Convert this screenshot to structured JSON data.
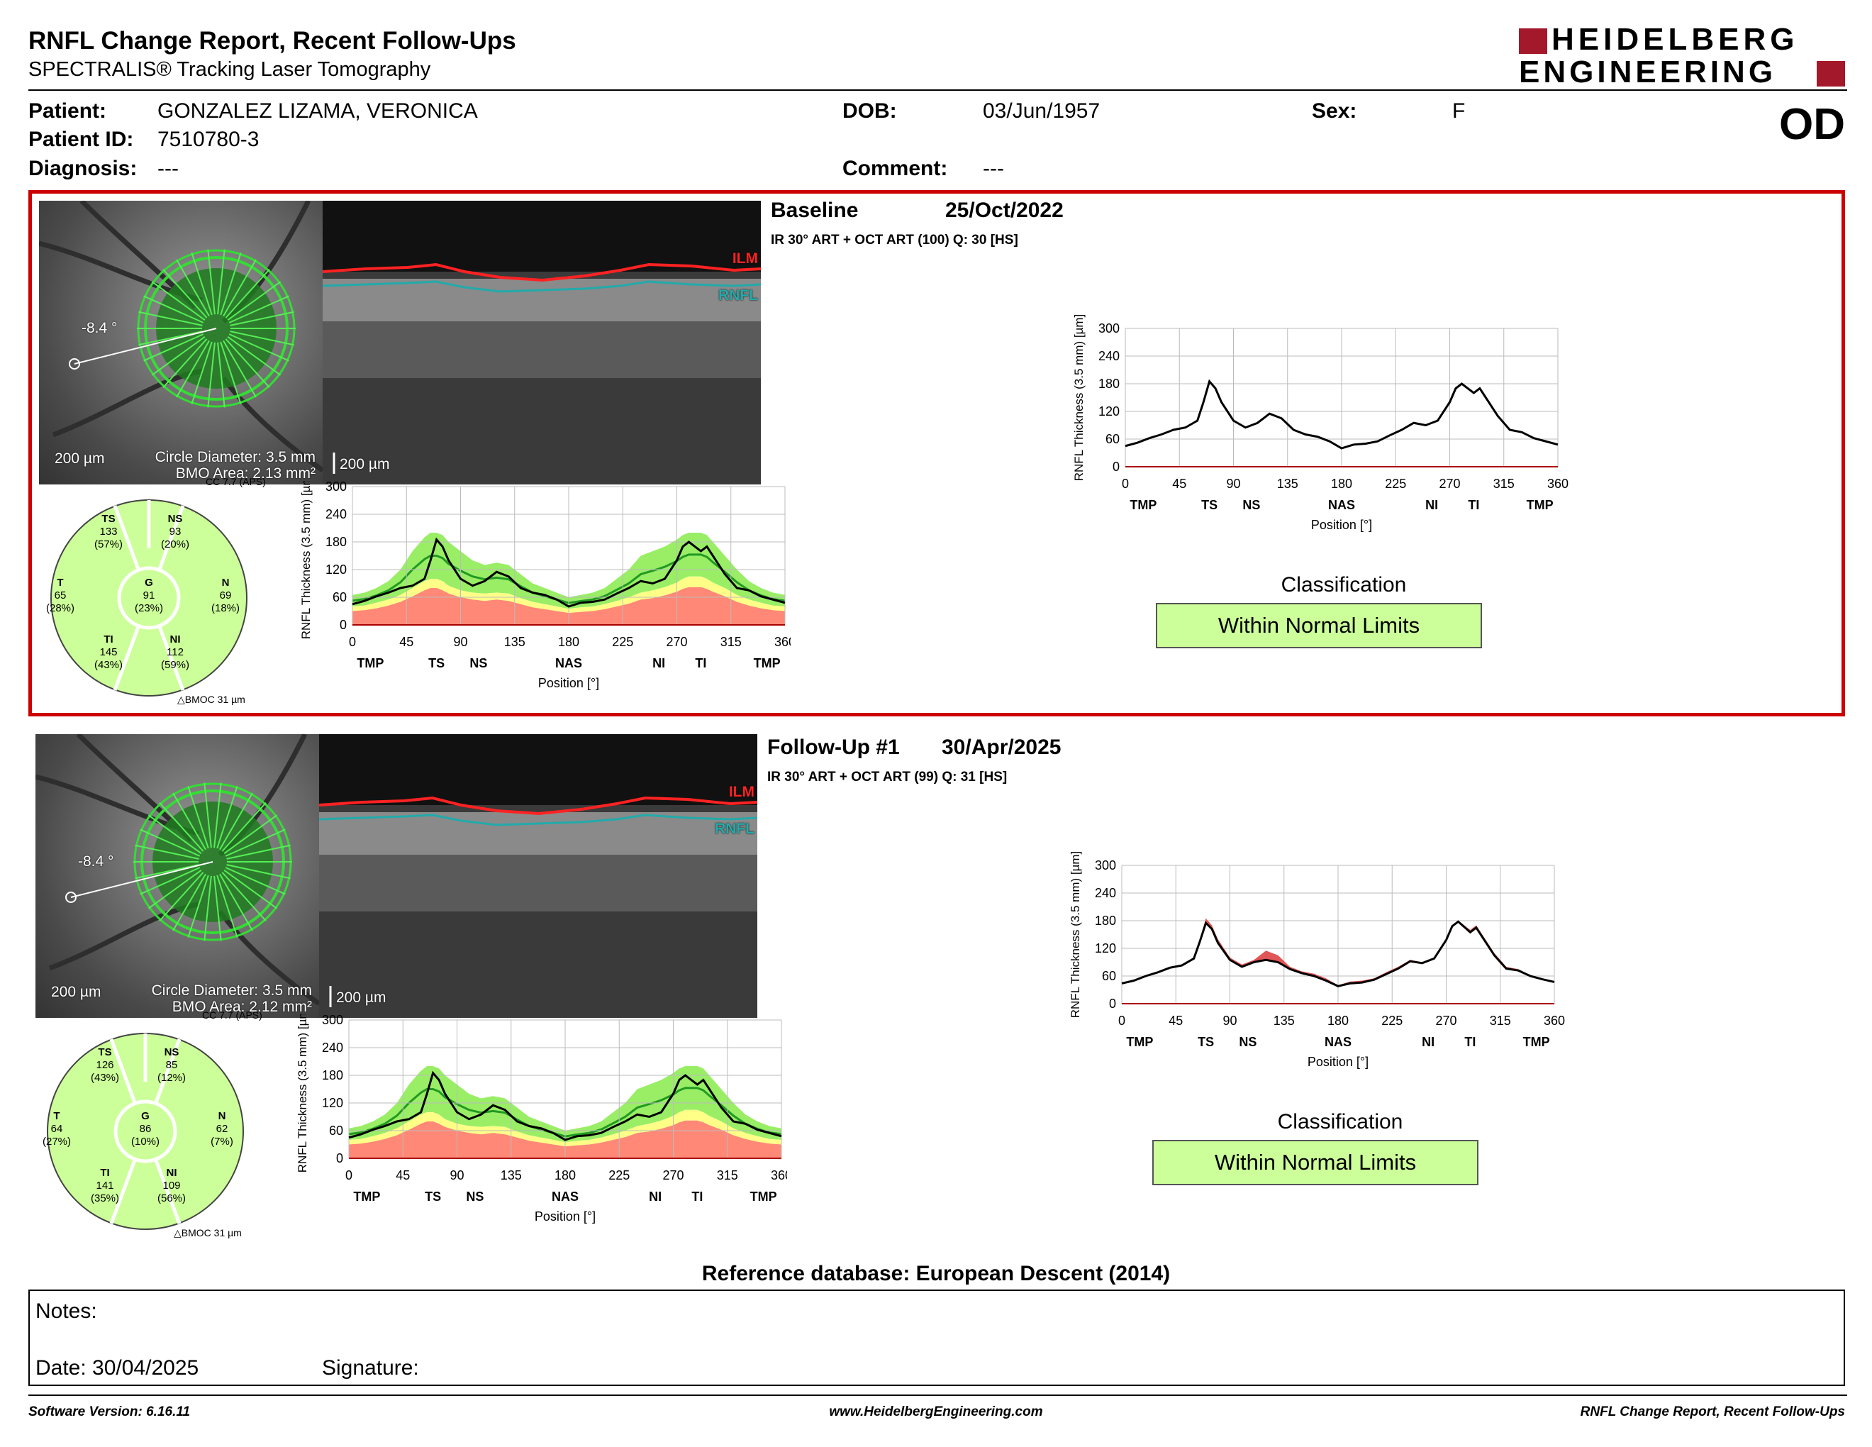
{
  "header": {
    "title": "RNFL Change Report, Recent Follow-Ups",
    "subtitle": "SPECTRALIS® Tracking Laser Tomography",
    "logo_line1": "HEIDELBERG",
    "logo_line2": "ENGINEERING",
    "eye": "OD"
  },
  "patient": {
    "patient_label": "Patient:",
    "patient_value": "GONZALEZ LIZAMA, VERONICA",
    "id_label": "Patient ID:",
    "id_value": "7510780-3",
    "diagnosis_label": "Diagnosis:",
    "diagnosis_value": "---",
    "dob_label": "DOB:",
    "dob_value": "03/Jun/1957",
    "comment_label": "Comment:",
    "comment_value": "---",
    "sex_label": "Sex:",
    "sex_value": "F"
  },
  "colors": {
    "brand_red": "#a3182b",
    "panel_border": "#cc0000",
    "classification_bg": "#ccff99",
    "normal_band": "#99ee66",
    "borderline_band": "#ffff88",
    "abnormal_band": "#ff8877"
  },
  "chart_axes": {
    "ylabel": "RNFL Thickness (3.5 mm) [µm]",
    "xlabel": "Position [°]",
    "yticks": [
      "0",
      "60",
      "120",
      "180",
      "240",
      "300"
    ],
    "xticks": [
      "0",
      "45",
      "90",
      "135",
      "180",
      "225",
      "270",
      "315",
      "360"
    ],
    "sector_labels": [
      "TMP",
      "TS",
      "NS",
      "NAS",
      "NI",
      "TI",
      "TMP"
    ]
  },
  "sessions": [
    {
      "label": "Baseline",
      "date": "25/Oct/2022",
      "scan": "IR 30° ART + OCT ART (100) Q: 30 [HS]",
      "angle": "-8.4 °",
      "scale_fundus": "200 µm",
      "scale_bscan": "200 µm",
      "circle_diameter": "Circle Diameter: 3.5 mm",
      "bmo_area": "BMO Area: 2.13 mm²",
      "cc": "CC 7.7 (APS)",
      "bmoc": "BMOC 31 µm",
      "ilm": "ILM",
      "rnfl": "RNFL",
      "classification_title": "Classification",
      "classification": "Within Normal Limits",
      "sectors": {
        "TS": {
          "name": "TS",
          "value": "133",
          "pct": "(57%)"
        },
        "NS": {
          "name": "NS",
          "value": "93",
          "pct": "(20%)"
        },
        "T": {
          "name": "T",
          "value": "65",
          "pct": "(28%)"
        },
        "G": {
          "name": "G",
          "value": "91",
          "pct": "(23%)"
        },
        "N": {
          "name": "N",
          "value": "69",
          "pct": "(18%)"
        },
        "TI": {
          "name": "TI",
          "value": "145",
          "pct": "(43%)"
        },
        "NI": {
          "name": "NI",
          "value": "112",
          "pct": "(59%)"
        }
      }
    },
    {
      "label": "Follow-Up #1",
      "date": "30/Apr/2025",
      "scan": "IR 30° ART + OCT ART (99) Q: 31 [HS]",
      "angle": "-8.4 °",
      "scale_fundus": "200 µm",
      "scale_bscan": "200 µm",
      "circle_diameter": "Circle Diameter: 3.5 mm",
      "bmo_area": "BMO Area: 2.12 mm²",
      "cc": "CC 7.7 (APS)",
      "bmoc": "BMOC 31 µm",
      "ilm": "ILM",
      "rnfl": "RNFL",
      "classification_title": "Classification",
      "classification": "Within Normal Limits",
      "sectors": {
        "TS": {
          "name": "TS",
          "value": "126",
          "pct": "(43%)"
        },
        "NS": {
          "name": "NS",
          "value": "85",
          "pct": "(12%)"
        },
        "T": {
          "name": "T",
          "value": "64",
          "pct": "(27%)"
        },
        "G": {
          "name": "G",
          "value": "86",
          "pct": "(10%)"
        },
        "N": {
          "name": "N",
          "value": "62",
          "pct": "(7%)"
        },
        "TI": {
          "name": "TI",
          "value": "141",
          "pct": "(35%)"
        },
        "NI": {
          "name": "NI",
          "value": "109",
          "pct": "(56%)"
        }
      }
    }
  ],
  "chart_data": [
    {
      "type": "line",
      "ylim": [
        0,
        300
      ],
      "xlim": [
        0,
        360
      ],
      "x": [
        0,
        10,
        20,
        30,
        40,
        50,
        60,
        65,
        70,
        75,
        80,
        90,
        100,
        110,
        120,
        130,
        140,
        150,
        160,
        170,
        180,
        190,
        200,
        210,
        220,
        230,
        240,
        250,
        260,
        270,
        275,
        280,
        290,
        295,
        300,
        310,
        320,
        330,
        340,
        350,
        360
      ],
      "series": [
        {
          "values": [
            45,
            52,
            62,
            70,
            80,
            85,
            100,
            140,
            185,
            170,
            140,
            100,
            85,
            95,
            115,
            105,
            80,
            70,
            65,
            55,
            40,
            48,
            50,
            55,
            68,
            80,
            95,
            90,
            100,
            140,
            170,
            180,
            160,
            170,
            150,
            110,
            80,
            75,
            62,
            55,
            48
          ]
        }
      ],
      "normal_upper": [
        65,
        70,
        80,
        95,
        120,
        160,
        190,
        200,
        200,
        195,
        180,
        160,
        140,
        130,
        135,
        130,
        110,
        90,
        80,
        70,
        60,
        65,
        70,
        80,
        100,
        120,
        150,
        160,
        170,
        185,
        195,
        200,
        200,
        195,
        180,
        150,
        120,
        95,
        80,
        70,
        65
      ],
      "normal_lower": [
        40,
        42,
        48,
        55,
        65,
        80,
        95,
        100,
        100,
        95,
        85,
        75,
        70,
        68,
        70,
        68,
        58,
        50,
        45,
        40,
        35,
        38,
        40,
        45,
        52,
        60,
        70,
        75,
        82,
        92,
        100,
        105,
        105,
        100,
        92,
        80,
        65,
        55,
        48,
        42,
        40
      ],
      "borderline_lower": [
        30,
        32,
        36,
        42,
        50,
        62,
        75,
        80,
        80,
        75,
        68,
        60,
        55,
        52,
        55,
        52,
        45,
        38,
        34,
        30,
        26,
        28,
        30,
        34,
        40,
        46,
        55,
        58,
        64,
        72,
        78,
        82,
        82,
        78,
        72,
        62,
        50,
        42,
        36,
        32,
        30
      ]
    },
    {
      "type": "line",
      "ylim": [
        0,
        300
      ],
      "xlim": [
        0,
        360
      ],
      "x": [
        0,
        10,
        20,
        30,
        40,
        50,
        60,
        65,
        70,
        75,
        80,
        90,
        100,
        110,
        120,
        130,
        140,
        150,
        160,
        170,
        180,
        190,
        200,
        210,
        220,
        230,
        240,
        250,
        260,
        270,
        275,
        280,
        290,
        295,
        300,
        310,
        320,
        330,
        340,
        350,
        360
      ],
      "series": [
        {
          "values": [
            45,
            52,
            62,
            70,
            80,
            85,
            100,
            140,
            185,
            170,
            140,
            100,
            85,
            95,
            115,
            105,
            80,
            70,
            65,
            55,
            40,
            48,
            50,
            55,
            68,
            80,
            95,
            90,
            100,
            140,
            170,
            180,
            160,
            170,
            150,
            110,
            80,
            75,
            62,
            55,
            48
          ]
        },
        {
          "values": [
            44,
            50,
            60,
            68,
            78,
            83,
            98,
            135,
            175,
            162,
            132,
            95,
            80,
            90,
            95,
            90,
            75,
            66,
            60,
            50,
            38,
            44,
            46,
            52,
            64,
            76,
            92,
            88,
            98,
            138,
            168,
            178,
            155,
            165,
            145,
            105,
            76,
            72,
            60,
            53,
            47
          ]
        }
      ]
    }
  ],
  "footer": {
    "refdb": "Reference database: European Descent (2014)",
    "notes": "Notes:",
    "date": "Date: 30/04/2025",
    "signature": "Signature:",
    "software": "Software Version: 6.16.11",
    "website": "www.HeidelbergEngineering.com",
    "report": "RNFL Change Report, Recent Follow-Ups"
  }
}
